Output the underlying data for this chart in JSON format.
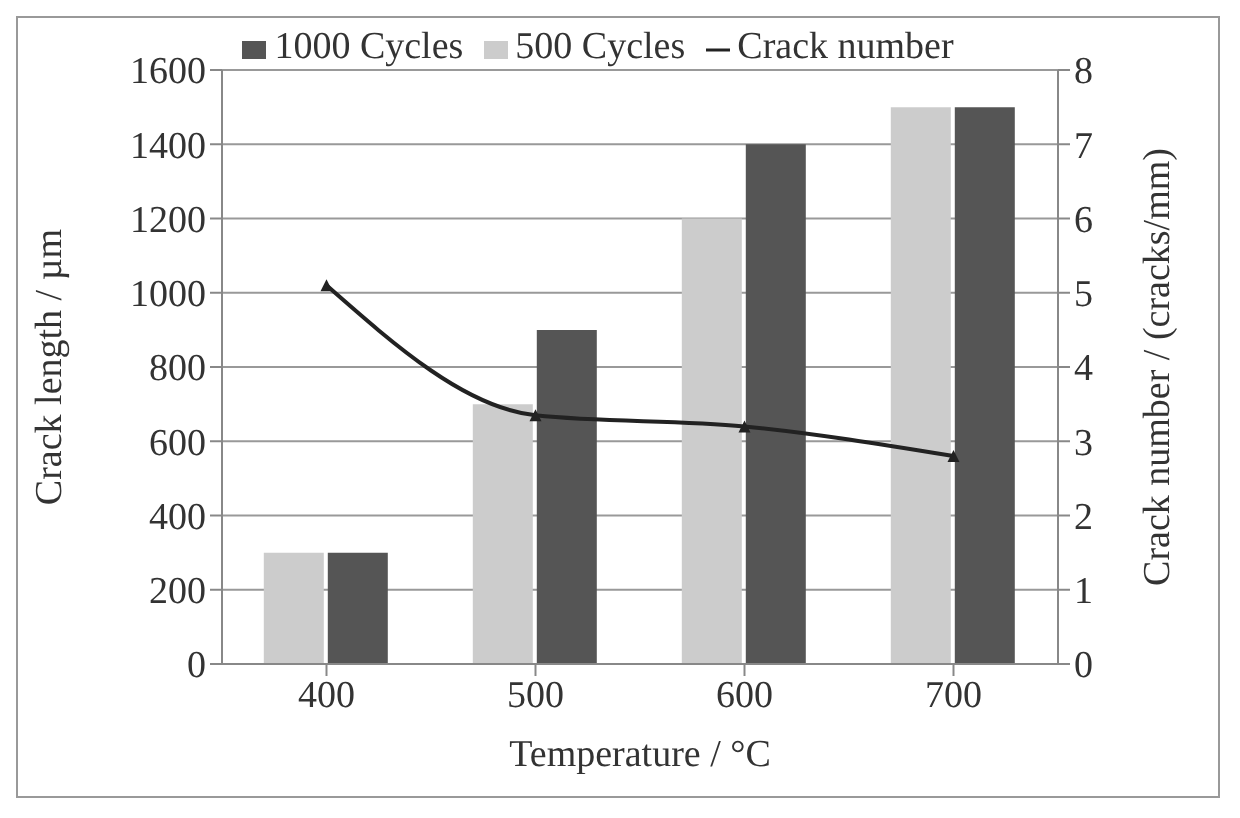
{
  "chart_data": {
    "type": "bar",
    "categories": [
      "400",
      "500",
      "600",
      "700"
    ],
    "xlabel": "Temperature / °C",
    "ylabel": "Crack length / µm",
    "y2label": "Crack number / (cracks/mm)",
    "series": [
      {
        "name": "500 Cycles",
        "color": "#cccccc",
        "values": [
          300,
          700,
          1200,
          1500
        ]
      },
      {
        "name": "1000 Cycles",
        "color": "#555555",
        "values": [
          300,
          900,
          1400,
          1500
        ]
      },
      {
        "name": "Crack number",
        "type": "line",
        "axis": "y2",
        "color": "#222222",
        "values": [
          5.1,
          3.35,
          3.2,
          2.8
        ]
      }
    ],
    "ylim": [
      0,
      1600
    ],
    "yticks": [
      0,
      200,
      400,
      600,
      800,
      1000,
      1200,
      1400,
      1600
    ],
    "y2lim": [
      0,
      8
    ],
    "y2ticks": [
      0,
      1,
      2,
      3,
      4,
      5,
      6,
      7,
      8
    ],
    "grid": "y",
    "legend": "top",
    "marker": "triangle",
    "line_style": "solid"
  }
}
